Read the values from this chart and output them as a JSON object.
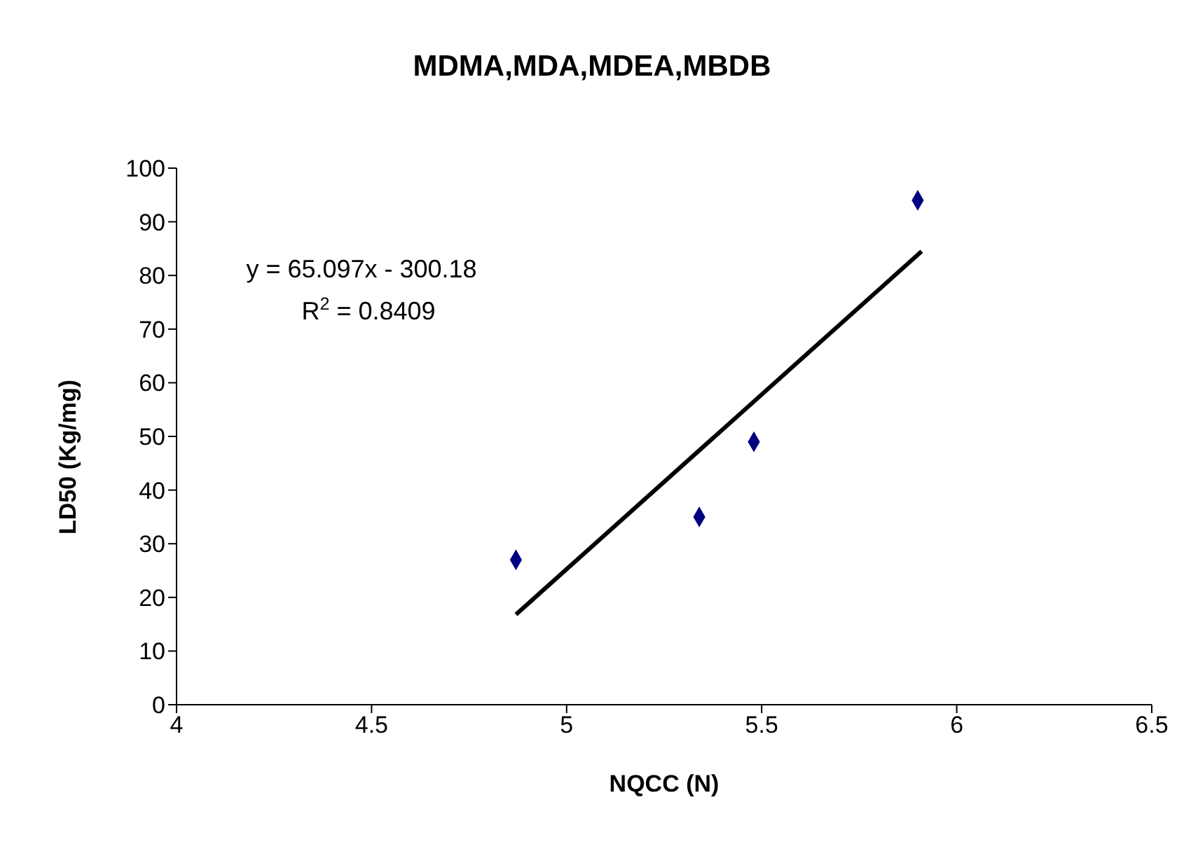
{
  "chart_data": {
    "type": "scatter",
    "title": "MDMA,MDA,MDEA,MBDB",
    "xlabel": "NQCC (N)",
    "ylabel": "LD50 (Kg/mg)",
    "xlim": [
      4,
      6.5
    ],
    "xticks": [
      4,
      4.5,
      5,
      5.5,
      6,
      6.5
    ],
    "ylim": [
      0,
      100
    ],
    "yticks": [
      0,
      10,
      20,
      30,
      40,
      50,
      60,
      70,
      80,
      90,
      100
    ],
    "grid": false,
    "legend": false,
    "marker": "diamond",
    "annotations": [
      "y = 65.097x - 300.18",
      "R$^{2}$ = 0.8409"
    ],
    "series": [
      {
        "color": "#000080",
        "x": [
          4.87,
          5.34,
          5.48,
          5.9
        ],
        "values": [
          27,
          35,
          49,
          94
        ]
      },
      {
        "type": "line",
        "color": "#000000",
        "marker": "none",
        "line_style": "solid",
        "x": [
          4.87,
          5.91
        ],
        "values": [
          16.8,
          84.5
        ]
      }
    ]
  }
}
